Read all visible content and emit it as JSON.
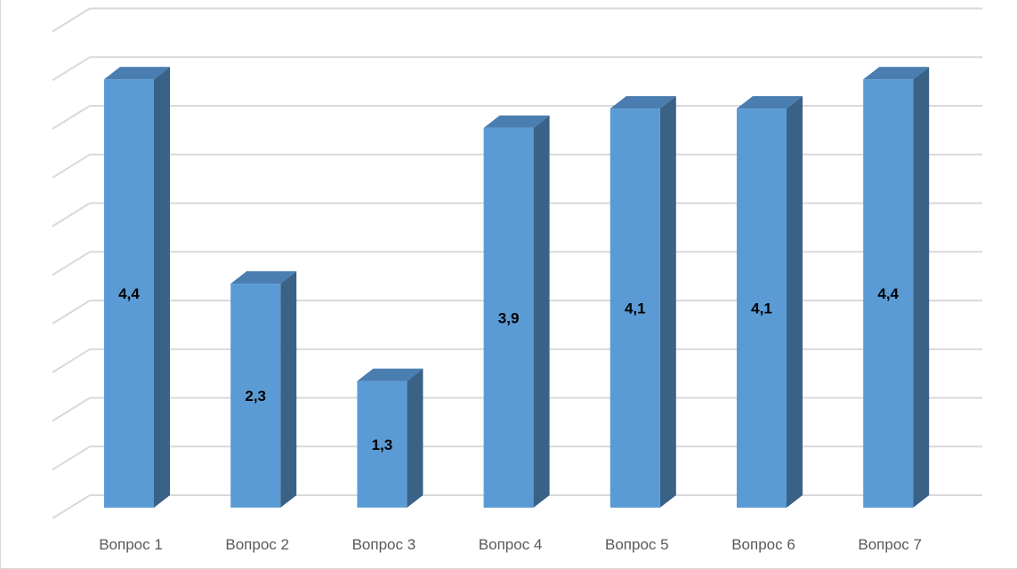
{
  "chart_data": {
    "type": "bar",
    "style": "3d-column",
    "categories": [
      "Вопрос 1",
      "Вопрос 2",
      "Вопрос 3",
      "Вопрос 4",
      "Вопрос 5",
      "Вопрос 6",
      "Вопрос 7"
    ],
    "values": [
      4.4,
      2.3,
      1.3,
      3.9,
      4.1,
      4.1,
      4.4
    ],
    "data_labels": [
      "4,4",
      "2,3",
      "1,3",
      "3,9",
      "4,1",
      "4,1",
      "4,4"
    ],
    "title": "",
    "xlabel": "",
    "ylabel": "",
    "ylim": [
      0,
      5
    ],
    "grid": true,
    "legend": "none",
    "colors": {
      "bar_front": "#5b9bd5",
      "bar_side": "#3a6186",
      "bar_top": "#4a7db0",
      "grid": "#d9d9d9"
    }
  }
}
